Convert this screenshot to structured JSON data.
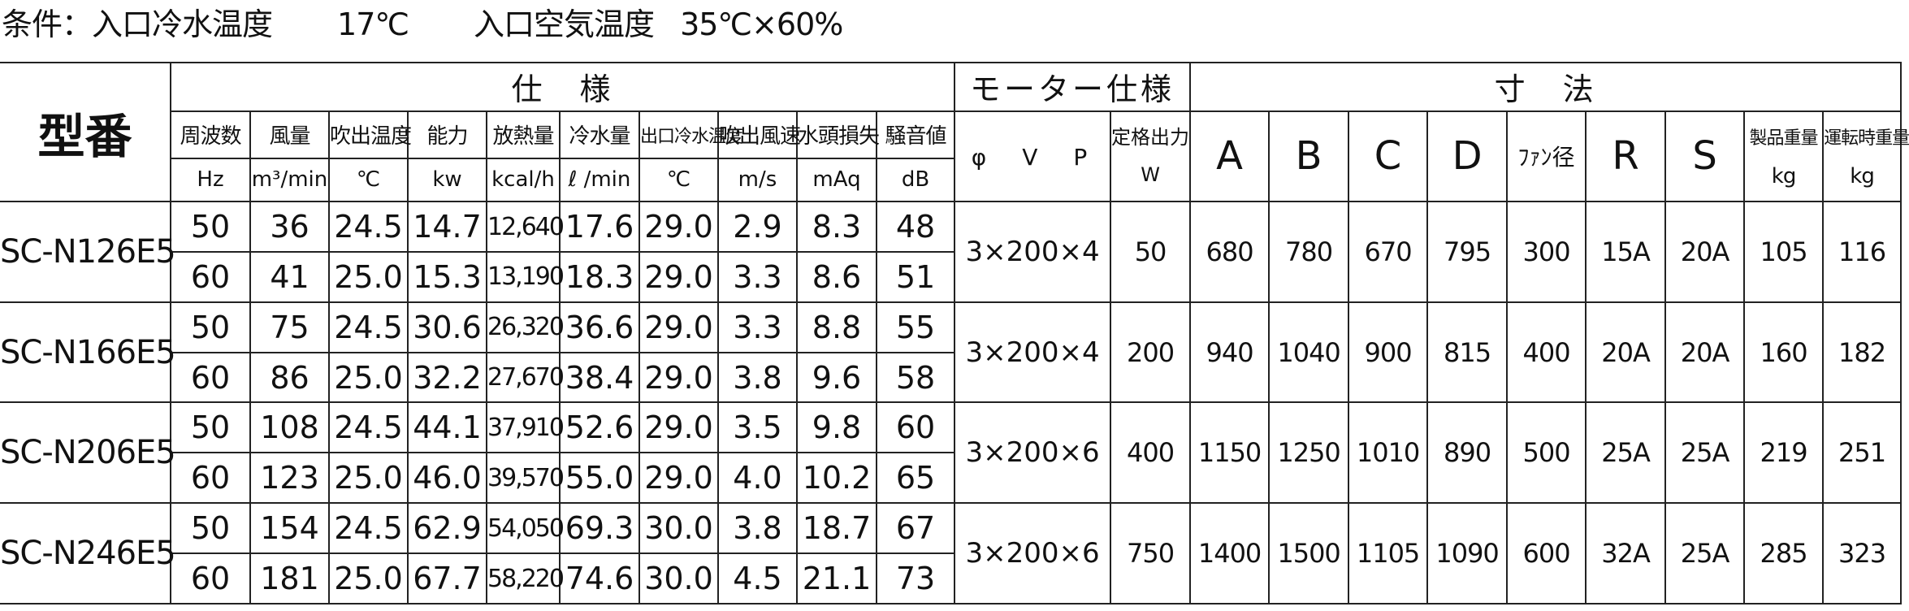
{
  "conditions": {
    "prefix": "条件：入口冷水温度",
    "inlet_water_temp": "17℃",
    "air_label": "入口空気温度",
    "air_condition": "35℃×60%"
  },
  "headers": {
    "model": "型番",
    "spec_group": "仕　様",
    "motor_group": "モーター仕様",
    "dimensions_group": "寸　法",
    "spec_columns": [
      {
        "label": "周波数",
        "unit": "Hz"
      },
      {
        "label": "風量",
        "unit": "m³/min"
      },
      {
        "label": "吹出温度",
        "unit": "℃"
      },
      {
        "label": "能力",
        "unit": "kw"
      },
      {
        "label": "放熱量",
        "unit": "kcal/h"
      },
      {
        "label": "冷水量",
        "unit": "ℓ /min"
      },
      {
        "label": "出口冷水温度",
        "unit": "℃"
      },
      {
        "label": "吹出風速",
        "unit": "m/s"
      },
      {
        "label": "水頭損失",
        "unit": "mAq"
      },
      {
        "label": "騒音値",
        "unit": "dB"
      }
    ],
    "motor_columns": {
      "phase_vp": "φ　V　P",
      "rated_output": "定格出力",
      "rated_unit": "W"
    },
    "dim_columns": {
      "a": "A",
      "b": "B",
      "c": "C",
      "d": "D",
      "fan": "ﾌｧﾝ径",
      "r": "R",
      "s": "S",
      "product_weight": "製品重量",
      "operating_weight": "運転時重量",
      "weight_unit": "kg"
    }
  },
  "models": [
    {
      "name": "SC-N126E5",
      "rows": [
        [
          "50",
          "36",
          "24.5",
          "14.7",
          "12,640",
          "17.6",
          "29.0",
          "2.9",
          "8.3",
          "48"
        ],
        [
          "60",
          "41",
          "25.0",
          "15.3",
          "13,190",
          "18.3",
          "29.0",
          "3.3",
          "8.6",
          "51"
        ]
      ],
      "motor": "3×200×4",
      "rated": "50",
      "dims": [
        "680",
        "780",
        "670",
        "795",
        "300",
        "15A",
        "20A",
        "105",
        "116"
      ]
    },
    {
      "name": "SC-N166E5",
      "rows": [
        [
          "50",
          "75",
          "24.5",
          "30.6",
          "26,320",
          "36.6",
          "29.0",
          "3.3",
          "8.8",
          "55"
        ],
        [
          "60",
          "86",
          "25.0",
          "32.2",
          "27,670",
          "38.4",
          "29.0",
          "3.8",
          "9.6",
          "58"
        ]
      ],
      "motor": "3×200×4",
      "rated": "200",
      "dims": [
        "940",
        "1040",
        "900",
        "815",
        "400",
        "20A",
        "20A",
        "160",
        "182"
      ]
    },
    {
      "name": "SC-N206E5",
      "rows": [
        [
          "50",
          "108",
          "24.5",
          "44.1",
          "37,910",
          "52.6",
          "29.0",
          "3.5",
          "9.8",
          "60"
        ],
        [
          "60",
          "123",
          "25.0",
          "46.0",
          "39,570",
          "55.0",
          "29.0",
          "4.0",
          "10.2",
          "65"
        ]
      ],
      "motor": "3×200×6",
      "rated": "400",
      "dims": [
        "1150",
        "1250",
        "1010",
        "890",
        "500",
        "25A",
        "25A",
        "219",
        "251"
      ]
    },
    {
      "name": "SC-N246E5",
      "rows": [
        [
          "50",
          "154",
          "24.5",
          "62.9",
          "54,050",
          "69.3",
          "30.0",
          "3.8",
          "18.7",
          "67"
        ],
        [
          "60",
          "181",
          "25.0",
          "67.7",
          "58,220",
          "74.6",
          "30.0",
          "4.5",
          "21.1",
          "73"
        ]
      ],
      "motor": "3×200×6",
      "rated": "750",
      "dims": [
        "1400",
        "1500",
        "1105",
        "1090",
        "600",
        "32A",
        "25A",
        "285",
        "323"
      ]
    }
  ]
}
